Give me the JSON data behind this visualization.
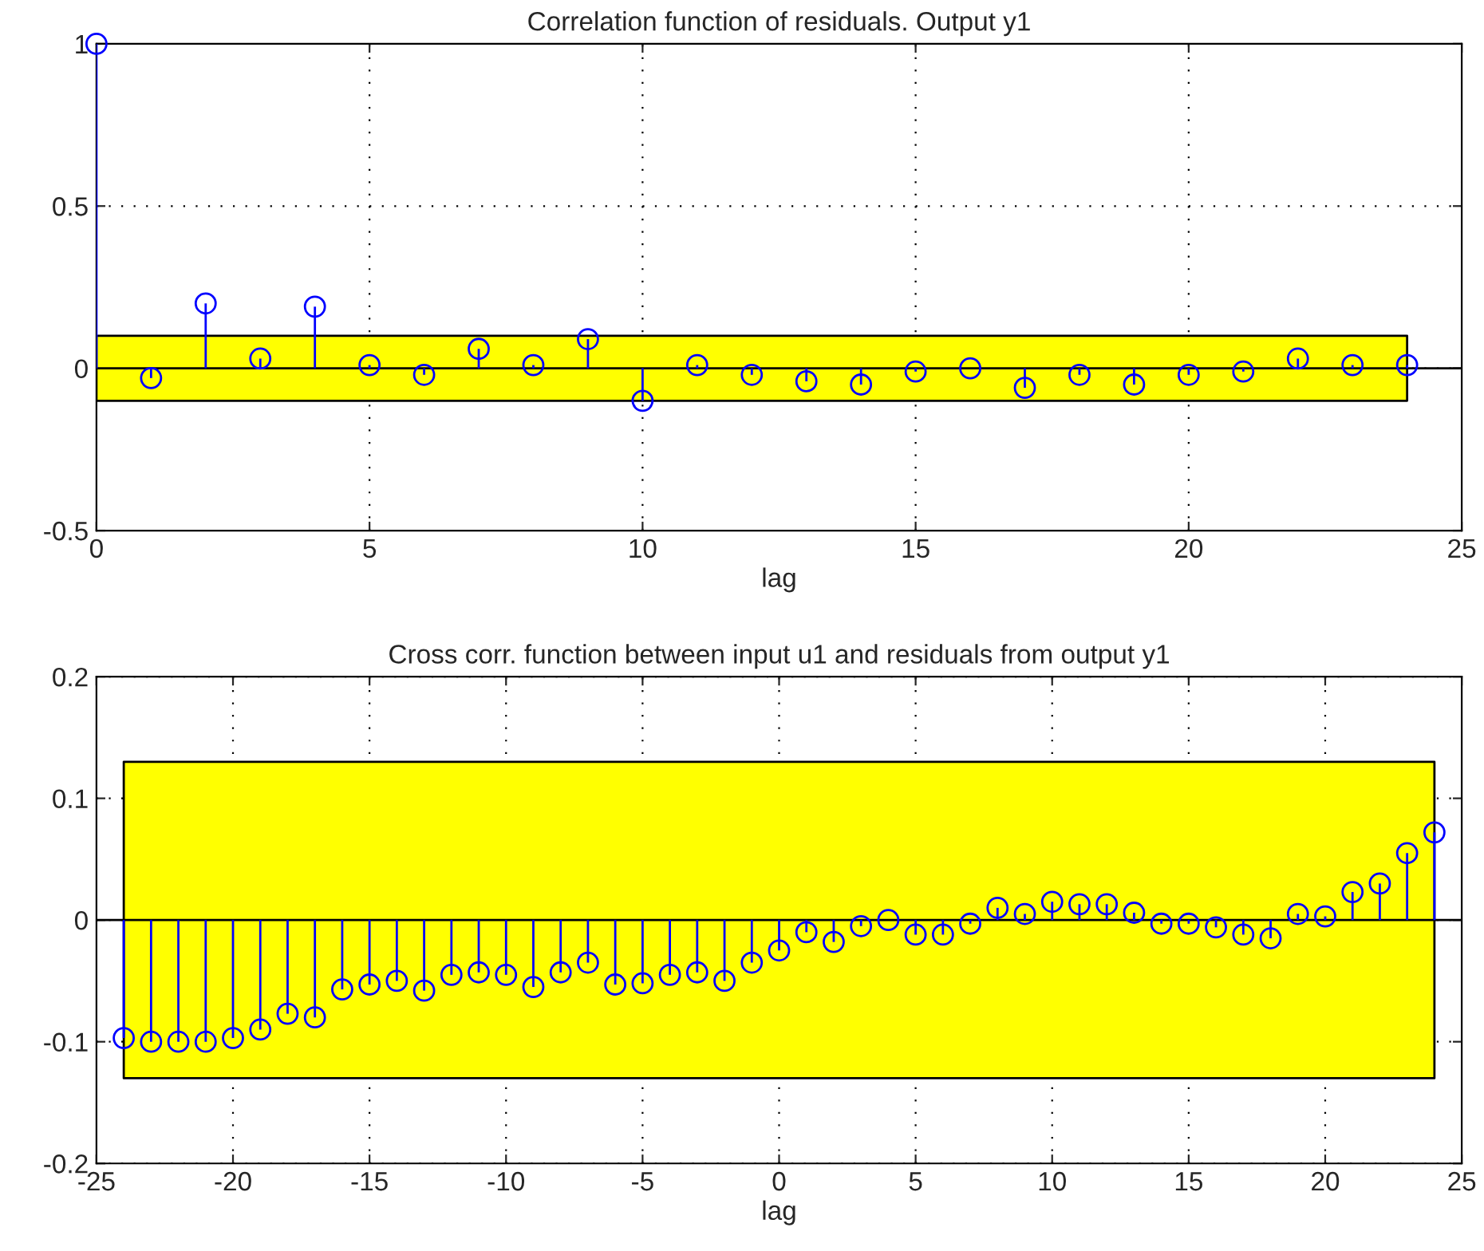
{
  "chart_data": [
    {
      "type": "lollipop",
      "title": "Correlation function of residuals. Output y1",
      "xlabel": "lag",
      "x": [
        0,
        1,
        2,
        3,
        4,
        5,
        6,
        7,
        8,
        9,
        10,
        11,
        12,
        13,
        14,
        15,
        16,
        17,
        18,
        19,
        20,
        21,
        22,
        23,
        24
      ],
      "series": [
        {
          "color": "#0000ff",
          "values": [
            1,
            -0.03,
            0.2,
            0.03,
            0.19,
            0.01,
            -0.02,
            0.06,
            0.01,
            0.09,
            -0.1,
            0.01,
            -0.02,
            -0.04,
            -0.05,
            -0.01,
            0.0,
            -0.06,
            -0.02,
            -0.05,
            -0.02,
            -0.01,
            0.03,
            0.01,
            0.01
          ]
        }
      ],
      "bands": [
        {
          "axis": "y",
          "from": -0.1,
          "to": 0.1,
          "color": "#ffff00"
        }
      ],
      "xlim": [
        0,
        25
      ],
      "xticks": [
        0,
        5,
        10,
        15,
        20,
        25
      ],
      "ylim": [
        -0.5,
        1
      ],
      "yticks": [
        -0.5,
        0,
        0.5,
        1
      ],
      "grid": true,
      "marker": "circle"
    },
    {
      "type": "lollipop",
      "title": "Cross corr. function between input u1 and residuals from output y1",
      "xlabel": "lag",
      "x": [
        -24,
        -23,
        -22,
        -21,
        -20,
        -19,
        -18,
        -17,
        -16,
        -15,
        -14,
        -13,
        -12,
        -11,
        -10,
        -9,
        -8,
        -7,
        -6,
        -5,
        -4,
        -3,
        -2,
        -1,
        0,
        1,
        2,
        3,
        4,
        5,
        6,
        7,
        8,
        9,
        10,
        11,
        12,
        13,
        14,
        15,
        16,
        17,
        18,
        19,
        20,
        21,
        22,
        23,
        24
      ],
      "series": [
        {
          "color": "#0000ff",
          "values": [
            -0.097,
            -0.1,
            -0.1,
            -0.1,
            -0.097,
            -0.09,
            -0.077,
            -0.08,
            -0.057,
            -0.053,
            -0.05,
            -0.058,
            -0.045,
            -0.043,
            -0.045,
            -0.055,
            -0.043,
            -0.035,
            -0.053,
            -0.052,
            -0.045,
            -0.043,
            -0.05,
            -0.035,
            -0.025,
            -0.01,
            -0.018,
            -0.005,
            0.0,
            -0.012,
            -0.012,
            -0.003,
            0.01,
            0.005,
            0.015,
            0.013,
            0.013,
            0.006,
            -0.003,
            -0.003,
            -0.006,
            -0.012,
            -0.015,
            0.005,
            0.003,
            0.023,
            0.03,
            0.055,
            0.072
          ]
        }
      ],
      "bands": [
        {
          "axis": "y",
          "from": -0.13,
          "to": 0.13,
          "color": "#ffff00"
        }
      ],
      "xlim": [
        -25,
        25
      ],
      "xticks": [
        -25,
        -20,
        -15,
        -10,
        -5,
        0,
        5,
        10,
        15,
        20,
        25
      ],
      "ylim": [
        -0.2,
        0.2
      ],
      "yticks": [
        -0.2,
        -0.1,
        0,
        0.1,
        0.2
      ],
      "grid": true,
      "marker": "circle"
    }
  ]
}
